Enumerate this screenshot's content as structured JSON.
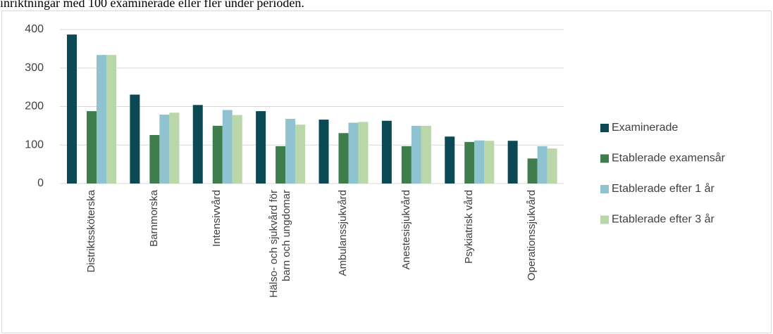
{
  "caption": "inriktningar med 100 examinerade eller fler under perioden.",
  "chart_data": {
    "type": "bar",
    "categories": [
      "Distriktssköterska",
      "Barnmorska",
      "Intensivvård",
      "Hälso- och sjukvård för barn och ungdomar",
      "Ambulanssjukvård",
      "Anestesisjukvård",
      "Psykiatrisk vård",
      "Operationssjukvård"
    ],
    "series": [
      {
        "name": "Examinerade",
        "color": "#0b4a55",
        "values": [
          387,
          231,
          204,
          188,
          166,
          163,
          122,
          111
        ]
      },
      {
        "name": "Etablerade examensår",
        "color": "#3f7d4d",
        "values": [
          188,
          126,
          150,
          97,
          131,
          97,
          108,
          65
        ]
      },
      {
        "name": "Etablerade efter 1 år",
        "color": "#8fc3d0",
        "values": [
          334,
          179,
          191,
          168,
          158,
          150,
          112,
          97
        ]
      },
      {
        "name": "Etablerade efter 3 år",
        "color": "#b9d7a8",
        "values": [
          334,
          184,
          178,
          153,
          160,
          150,
          111,
          91
        ]
      }
    ],
    "ylim": [
      0,
      400
    ],
    "yticks": [
      0,
      100,
      200,
      300,
      400
    ],
    "grid": true,
    "legend": "right"
  }
}
